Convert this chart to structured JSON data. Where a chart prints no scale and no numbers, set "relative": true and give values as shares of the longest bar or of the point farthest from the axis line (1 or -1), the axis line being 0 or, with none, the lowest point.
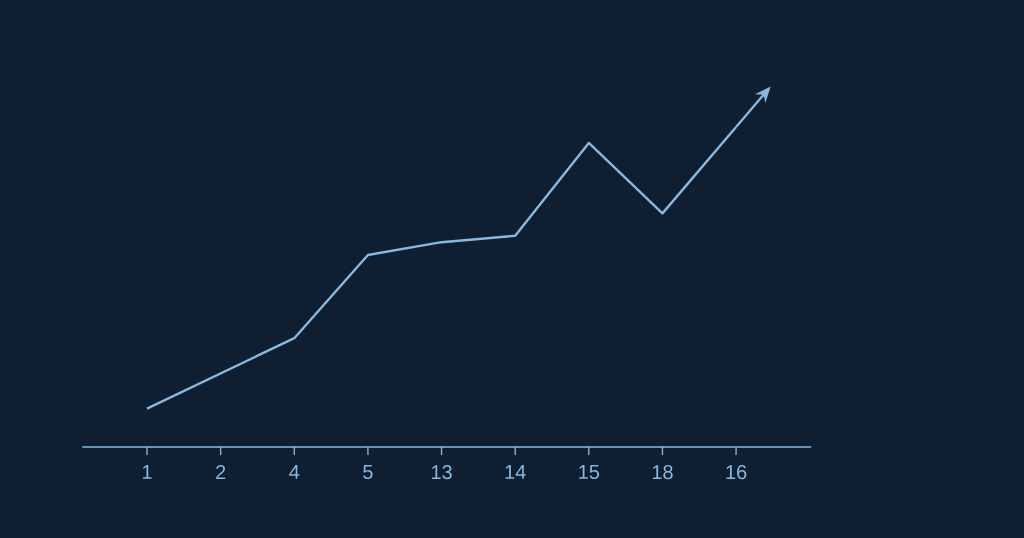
{
  "chart_data": {
    "type": "line",
    "relative": true,
    "color": "#8ab8e0",
    "marker": "none",
    "line_style": "solid",
    "categories": [
      "1",
      "2",
      "4",
      "5",
      "13",
      "14",
      "15",
      "18",
      "16"
    ],
    "values": [
      0.12,
      0.23,
      0.34,
      0.6,
      0.64,
      0.66,
      0.95,
      0.73,
      1
    ]
  }
}
